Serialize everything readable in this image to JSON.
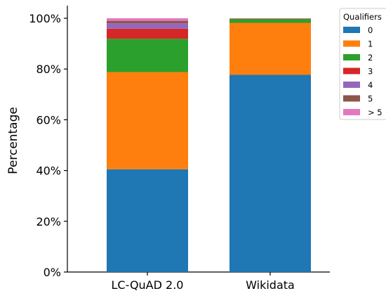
{
  "chart_data": {
    "type": "bar",
    "stacked": true,
    "title": "",
    "xlabel": "",
    "ylabel": "Percentage",
    "ylim": [
      0,
      100
    ],
    "yticks": [
      0,
      20,
      40,
      60,
      80,
      100
    ],
    "ytick_labels": [
      "0%",
      "20%",
      "40%",
      "60%",
      "80%",
      "100%"
    ],
    "categories": [
      "LC-QuAD 2.0",
      "Wikidata"
    ],
    "legend": {
      "title": "Qualifiers",
      "placement": "top-right, outside plot"
    },
    "series": [
      {
        "name": "0",
        "color": "#1f77b4",
        "values": [
          40.5,
          77.7
        ]
      },
      {
        "name": "1",
        "color": "#ff7f0e",
        "values": [
          38.3,
          20.5
        ]
      },
      {
        "name": "2",
        "color": "#2ca02c",
        "values": [
          13.1,
          1.5
        ]
      },
      {
        "name": "3",
        "color": "#d62728",
        "values": [
          4.0,
          0.15
        ]
      },
      {
        "name": "4",
        "color": "#9467bd",
        "values": [
          2.1,
          0.05
        ]
      },
      {
        "name": "5",
        "color": "#8c564b",
        "values": [
          1.0,
          0.05
        ]
      },
      {
        "name": "> 5",
        "color": "#e377c2",
        "values": [
          1.0,
          0.05
        ]
      }
    ],
    "grid": false
  }
}
